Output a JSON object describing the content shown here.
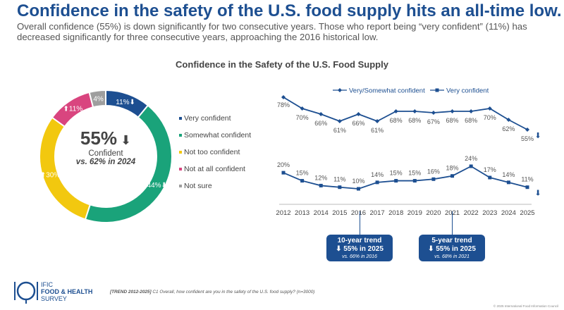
{
  "header": {
    "headline": "Confidence in the safety of the U.S. food supply hits an all-time low.",
    "subhead": "Overall confidence (55%) is down significantly for two consecutive years. Those who report being “very confident” (11%) has decreased significantly for three consecutive years, approaching the 2016 historical low."
  },
  "chart_data": [
    {
      "type": "pie",
      "title": "Confidence in the Safety of the U.S. Food Supply",
      "categories": [
        "Very confident",
        "Somewhat confident",
        "Not too confident",
        "Not at all confident",
        "Not sure"
      ],
      "values": [
        11,
        44,
        30,
        11,
        4
      ],
      "value_labels": [
        "11%",
        "44%",
        "30%",
        "11%",
        "4%"
      ],
      "colors": [
        "#1d4f91",
        "#1aa37a",
        "#f2c80f",
        "#d9457f",
        "#9e9e9e"
      ],
      "trend_arrows": [
        "down",
        "down",
        "up",
        "up",
        ""
      ],
      "center": {
        "value": "55%",
        "label": "Confident",
        "comparison": "vs. 62% in 2024",
        "arrow": "down"
      },
      "legend_position": "right"
    },
    {
      "type": "line",
      "x": [
        2012,
        2013,
        2014,
        2015,
        2016,
        2017,
        2018,
        2019,
        2020,
        2021,
        2022,
        2023,
        2024,
        2025
      ],
      "series": [
        {
          "name": "Very/Somewhat confident",
          "values": [
            78,
            70,
            66,
            61,
            66,
            61,
            68,
            68,
            67,
            68,
            68,
            70,
            62,
            55
          ],
          "color": "#1d4f91",
          "marker": "diamond"
        },
        {
          "name": "Very confident",
          "values": [
            20,
            15,
            12,
            11,
            10,
            14,
            15,
            15,
            16,
            18,
            24,
            17,
            14,
            11
          ],
          "color": "#1d4f91",
          "marker": "square"
        }
      ],
      "legend_position": "top",
      "end_arrows": [
        "down",
        "down"
      ]
    }
  ],
  "trends": [
    {
      "title": "10-year trend",
      "value": "⬇ 55% in 2025",
      "comparison": "vs. 66% in 2016",
      "year": 2016
    },
    {
      "title": "5-year trend",
      "value": "⬇ 55% in 2025",
      "comparison": "vs. 68% in 2021",
      "year": 2021
    }
  ],
  "footer": {
    "logo_line1": "IFIC",
    "logo_line2": "FOOD & HEALTH",
    "logo_line3": "SURVEY",
    "footnote_bold": "[TREND 2012-2025]",
    "footnote": " C1 Overall, how confident are you in the safety of the U.S. food supply? (n=3000)",
    "copyright": "© 2025 International Food Information Council"
  }
}
